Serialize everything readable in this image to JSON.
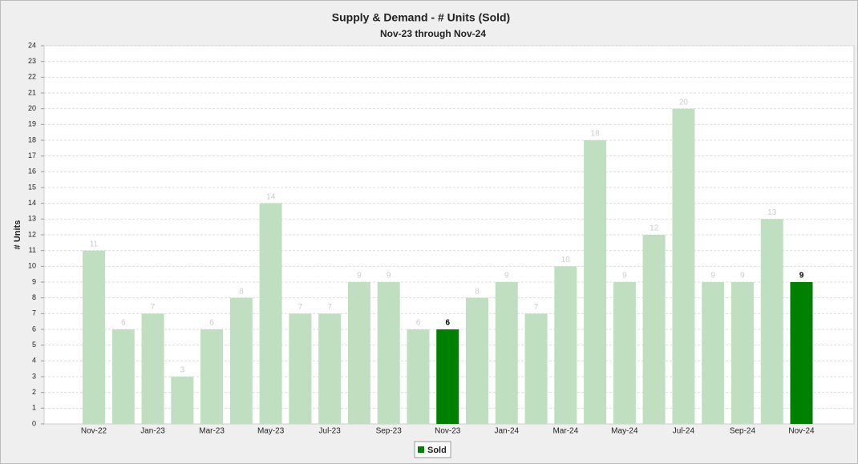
{
  "chart_data": {
    "type": "bar",
    "title": "Supply & Demand - # Units (Sold)",
    "subtitle": "Nov-23 through Nov-24",
    "y_label": "# Units",
    "categories": [
      "Nov-22",
      null,
      "Jan-23",
      null,
      "Mar-23",
      null,
      "May-23",
      null,
      "Jul-23",
      null,
      "Sep-23",
      null,
      "Nov-23",
      null,
      "Jan-24",
      null,
      "Mar-24",
      null,
      "May-24",
      null,
      "Jul-24",
      null,
      "Sep-24",
      null,
      "Nov-24"
    ],
    "series": [
      {
        "name": "Sold",
        "color": "#008000",
        "values": [
          11,
          6,
          7,
          3,
          6,
          8,
          14,
          7,
          7,
          9,
          9,
          6,
          6,
          8,
          9,
          7,
          10,
          18,
          9,
          12,
          20,
          9,
          9,
          13,
          9
        ],
        "bar_colors": [
          "#c0dfc0",
          "#c0dfc0",
          "#c0dfc0",
          "#c0dfc0",
          "#c0dfc0",
          "#c0dfc0",
          "#c0dfc0",
          "#c0dfc0",
          "#c0dfc0",
          "#c0dfc0",
          "#c0dfc0",
          "#c0dfc0",
          "#008000",
          "#c0dfc0",
          "#c0dfc0",
          "#c0dfc0",
          "#c0dfc0",
          "#c0dfc0",
          "#c0dfc0",
          "#c0dfc0",
          "#c0dfc0",
          "#c0dfc0",
          "#c0dfc0",
          "#c0dfc0",
          "#008000"
        ]
      }
    ],
    "ylim": [
      0,
      24
    ],
    "yticks": [
      0,
      1,
      2,
      3,
      4,
      5,
      6,
      7,
      8,
      9,
      10,
      11,
      12,
      13,
      14,
      15,
      16,
      17,
      18,
      19,
      20,
      21,
      22,
      23,
      24
    ],
    "grid": true
  }
}
